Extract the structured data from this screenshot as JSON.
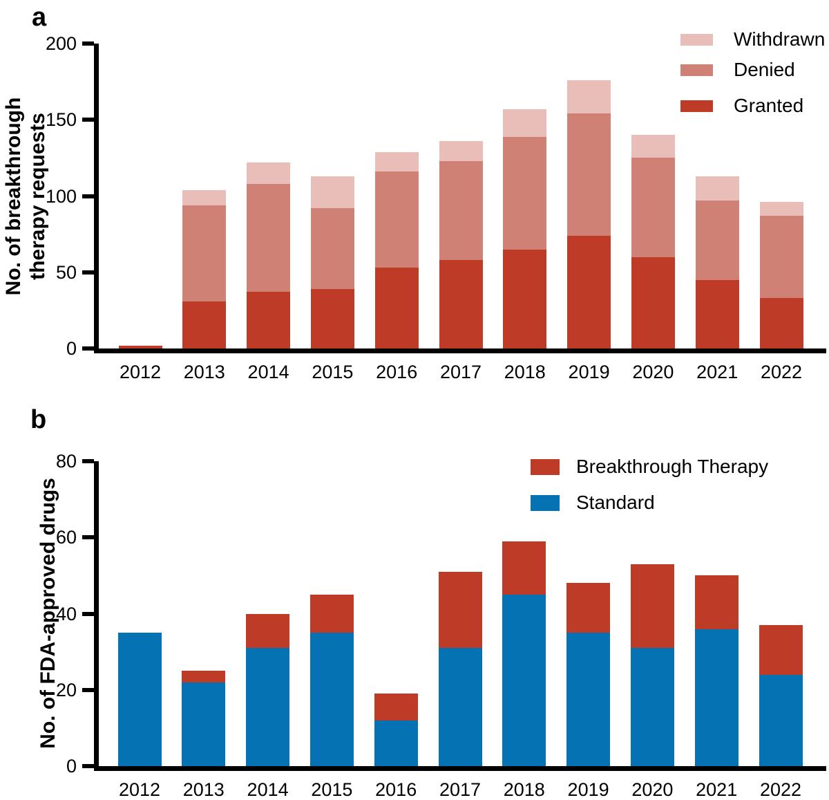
{
  "chart_data": [
    {
      "panel": "a",
      "type": "bar",
      "stacked": true,
      "categories": [
        "2012",
        "2013",
        "2014",
        "2015",
        "2016",
        "2017",
        "2018",
        "2019",
        "2020",
        "2021",
        "2022"
      ],
      "series": [
        {
          "name": "Granted",
          "color": "#bd3b27",
          "values": [
            2,
            31,
            37,
            39,
            53,
            58,
            65,
            74,
            60,
            45,
            33
          ]
        },
        {
          "name": "Denied",
          "color": "#cf8176",
          "values": [
            0,
            63,
            71,
            53,
            63,
            65,
            74,
            80,
            65,
            52,
            54
          ]
        },
        {
          "name": "Withdrawn",
          "color": "#e9beb8",
          "values": [
            0,
            10,
            14,
            21,
            13,
            13,
            18,
            22,
            15,
            16,
            9
          ]
        }
      ],
      "ylabel_lines": [
        "No. of breakthrough",
        "therapy requests"
      ],
      "ylim": [
        0,
        200
      ],
      "yticks": [
        0,
        50,
        100,
        150,
        200
      ],
      "legend_order": [
        "Withdrawn",
        "Denied",
        "Granted"
      ],
      "legend_position": "top-right",
      "grid": false
    },
    {
      "panel": "b",
      "type": "bar",
      "stacked": true,
      "categories": [
        "2012",
        "2013",
        "2014",
        "2015",
        "2016",
        "2017",
        "2018",
        "2019",
        "2020",
        "2021",
        "2022"
      ],
      "series": [
        {
          "name": "Standard",
          "color": "#0572b4",
          "values": [
            35,
            22,
            31,
            35,
            12,
            31,
            45,
            35,
            31,
            36,
            24
          ]
        },
        {
          "name": "Breakthrough Therapy",
          "color": "#bd3b27",
          "values": [
            0,
            3,
            9,
            10,
            7,
            20,
            14,
            13,
            22,
            14,
            13
          ]
        }
      ],
      "ylabel_lines": [
        "No. of FDA-approved drugs"
      ],
      "ylim": [
        0,
        80
      ],
      "yticks": [
        0,
        20,
        40,
        60,
        80
      ],
      "legend_order": [
        "Breakthrough Therapy",
        "Standard"
      ],
      "legend_position": "top-right",
      "grid": false
    }
  ]
}
